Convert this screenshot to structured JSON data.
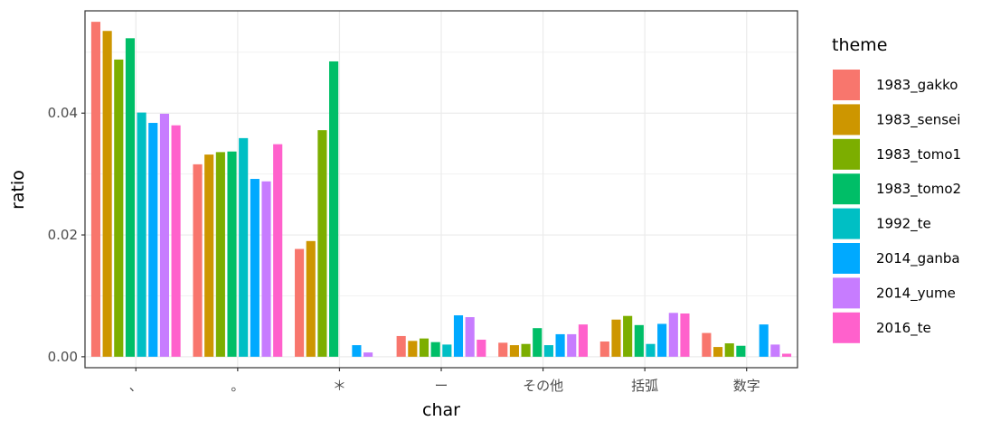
{
  "chart_data": {
    "type": "bar",
    "xlabel": "char",
    "ylabel": "ratio",
    "ylim": [
      -0.0018,
      0.0568
    ],
    "yticks": [
      0.0,
      0.02,
      0.04
    ],
    "ytick_labels": [
      "0.00",
      "0.02",
      "0.04"
    ],
    "categories": [
      "、",
      "。",
      "＊",
      "ー",
      "その他",
      "括弧",
      "数字"
    ],
    "grid": true,
    "legend": {
      "title": "theme",
      "position": "right"
    },
    "series": [
      {
        "name": "1983_gakko",
        "color": "#F8766D",
        "values": [
          0.055,
          0.0316,
          0.0177,
          0.0034,
          0.0023,
          0.0025,
          0.0039
        ]
      },
      {
        "name": "1983_sensei",
        "color": "#CD9600",
        "values": [
          0.0535,
          0.0332,
          0.019,
          0.0026,
          0.0019,
          0.0061,
          0.0016
        ]
      },
      {
        "name": "1983_tomo1",
        "color": "#7CAE00",
        "values": [
          0.0488,
          0.0336,
          0.0372,
          0.003,
          0.0021,
          0.0067,
          0.0022
        ]
      },
      {
        "name": "1983_tomo2",
        "color": "#00BE67",
        "values": [
          0.0523,
          0.0337,
          0.0485,
          0.0024,
          0.0047,
          0.0052,
          0.0018
        ]
      },
      {
        "name": "1992_te",
        "color": "#00BFC4",
        "values": [
          0.0401,
          0.0359,
          0.0,
          0.002,
          0.0019,
          0.0021,
          0.0
        ]
      },
      {
        "name": "2014_ganba",
        "color": "#00A9FF",
        "values": [
          0.0384,
          0.0292,
          0.0019,
          0.0068,
          0.0037,
          0.0054,
          0.0053
        ]
      },
      {
        "name": "2014_yume",
        "color": "#C77CFF",
        "values": [
          0.0399,
          0.0288,
          0.0007,
          0.0065,
          0.0037,
          0.0072,
          0.002
        ]
      },
      {
        "name": "2016_te",
        "color": "#FF61CC",
        "values": [
          0.038,
          0.0349,
          0.0,
          0.0028,
          0.0053,
          0.0071,
          0.0005
        ]
      }
    ]
  }
}
